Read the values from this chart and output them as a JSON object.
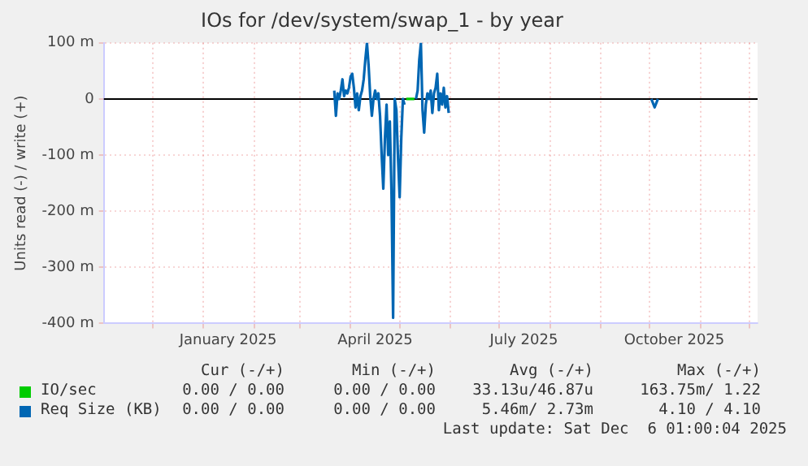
{
  "chart_data": {
    "type": "line",
    "title": "IOs for /dev/system/swap_1 - by year",
    "ylabel": "Units read (-) / write (+)",
    "xlim": [
      "2024-11-01",
      "2025-12-06"
    ],
    "xticks": [
      {
        "value": "2024-12-01",
        "label": null
      },
      {
        "value": "2025-01-01",
        "label": null
      },
      {
        "value": "2025-01-16",
        "label": "January 2025"
      },
      {
        "value": "2025-02-01",
        "label": null
      },
      {
        "value": "2025-03-01",
        "label": null
      },
      {
        "value": "2025-04-01",
        "label": null
      },
      {
        "value": "2025-04-16",
        "label": "April 2025"
      },
      {
        "value": "2025-05-01",
        "label": null
      },
      {
        "value": "2025-06-01",
        "label": null
      },
      {
        "value": "2025-07-01",
        "label": null
      },
      {
        "value": "2025-07-16",
        "label": "July 2025"
      },
      {
        "value": "2025-08-01",
        "label": null
      },
      {
        "value": "2025-09-01",
        "label": null
      },
      {
        "value": "2025-10-01",
        "label": null
      },
      {
        "value": "2025-10-16",
        "label": "October 2025"
      },
      {
        "value": "2025-11-01",
        "label": null
      },
      {
        "value": "2025-12-01",
        "label": null
      }
    ],
    "ylim": [
      -400,
      100
    ],
    "yticks": [
      {
        "value": -400,
        "label": "-400 m"
      },
      {
        "value": -300,
        "label": "-300 m"
      },
      {
        "value": -200,
        "label": "-200 m"
      },
      {
        "value": -100,
        "label": "-100 m"
      },
      0,
      {
        "value": 100,
        "label": "100 m"
      }
    ],
    "grid": true,
    "legend": "bottom",
    "marker": "none",
    "line_style": "solid",
    "ref_lines": [
      {
        "axis": "y",
        "value": 0,
        "label": null,
        "color": "#000000"
      }
    ],
    "series": [
      {
        "name": "IO/sec",
        "color": "#00cc00",
        "x": [
          "2025-05-05",
          "2025-05-06",
          "2025-05-07",
          "2025-05-08",
          "2025-05-09",
          "2025-05-10"
        ],
        "values": [
          0,
          0,
          0,
          0,
          0,
          0
        ]
      },
      {
        "name": "Req Size (KB)",
        "color": "#0066b3",
        "x": [
          "2025-03-22",
          "2025-03-23",
          "2025-03-24",
          "2025-03-25",
          "2025-03-26",
          "2025-03-27",
          "2025-03-28",
          "2025-03-29",
          "2025-03-30",
          "2025-03-31",
          "2025-04-01",
          "2025-04-02",
          "2025-04-03",
          "2025-04-04",
          "2025-04-05",
          "2025-04-06",
          "2025-04-07",
          "2025-04-08",
          "2025-04-09",
          "2025-04-10",
          "2025-04-11",
          "2025-04-12",
          "2025-04-13",
          "2025-04-14",
          "2025-04-15",
          "2025-04-16",
          "2025-04-17",
          "2025-04-18",
          "2025-04-19",
          "2025-04-20",
          "2025-04-21",
          "2025-04-22",
          "2025-04-23",
          "2025-04-24",
          "2025-04-25",
          "2025-04-26",
          "2025-04-27",
          "2025-04-28",
          "2025-04-29",
          "2025-04-30",
          "2025-05-01",
          "2025-05-02",
          "2025-05-03",
          "2025-05-04",
          "2025-05-07",
          "2025-05-11",
          "2025-05-12",
          "2025-05-13",
          "2025-05-14",
          "2025-05-15",
          "2025-05-16",
          "2025-05-17",
          "2025-05-18",
          "2025-05-19",
          "2025-05-20",
          "2025-05-21",
          "2025-05-22",
          "2025-05-23",
          "2025-05-24",
          "2025-05-25",
          "2025-05-26",
          "2025-05-27",
          "2025-05-28",
          "2025-05-29",
          "2025-05-30",
          "2025-05-31",
          "2025-06-10",
          "2025-10-02",
          "2025-10-04",
          "2025-10-06"
        ],
        "values": [
          15,
          -30,
          10,
          0,
          15,
          35,
          5,
          15,
          10,
          20,
          40,
          45,
          20,
          -15,
          10,
          -20,
          5,
          15,
          35,
          70,
          100,
          60,
          5,
          -30,
          0,
          15,
          0,
          10,
          -30,
          -100,
          -160,
          -70,
          -10,
          -100,
          -40,
          -165,
          -390,
          0,
          -20,
          -105,
          -175,
          -70,
          0,
          -10,
          null,
          0,
          15,
          70,
          100,
          -20,
          -60,
          -10,
          10,
          0,
          15,
          -25,
          10,
          20,
          45,
          -20,
          10,
          -10,
          20,
          -15,
          5,
          -25,
          null,
          0,
          -15,
          0
        ]
      }
    ],
    "annotations": [
      "Cur (-/+)",
      "Min (-/+)",
      "Avg (-/+)",
      "Max (-/+)",
      "0.00 / 0.00",
      "0.00 / 0.00",
      "33.13u/46.87u",
      "163.75m/ 1.22",
      "0.00 / 0.00",
      "0.00 / 0.00",
      "5.46m/ 2.73m",
      "4.10 / 4.10",
      "Last update: Sat Dec  6 01:00:04 2025"
    ]
  }
}
